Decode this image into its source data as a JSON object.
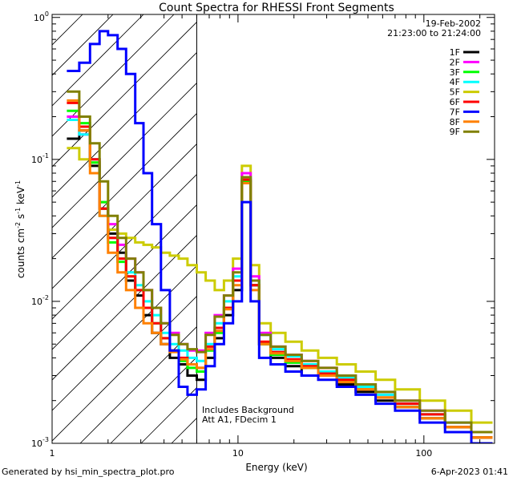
{
  "chart_data": {
    "type": "line",
    "title": "Count Spectra for RHESSI Front Segments",
    "xlabel": "Energy (keV)",
    "ylabel": "counts cm-2 s-1 keV-1",
    "ylabel_parts": {
      "base": "counts cm",
      "exp1": "-2",
      "mid": " s",
      "exp2": "-1",
      "tail": " keV",
      "exp3": "-1"
    },
    "xscale": "log",
    "yscale": "log",
    "xlim": [
      1,
      240
    ],
    "ylim": [
      0.001,
      1.05
    ],
    "x_ticks": [
      {
        "value": 1,
        "label": "1"
      },
      {
        "value": 10,
        "label": "10"
      },
      {
        "value": 100,
        "label": "100"
      }
    ],
    "y_ticks": [
      {
        "value": 1,
        "base": "10",
        "exp": "0"
      },
      {
        "value": 0.1,
        "base": "10",
        "exp": "-1"
      },
      {
        "value": 0.01,
        "base": "10",
        "exp": "-2"
      },
      {
        "value": 0.001,
        "base": "10",
        "exp": "-3"
      }
    ],
    "date": "19-Feb-2002",
    "time_range": "21:23:00 to 21:24:00",
    "annotations": [
      "Includes Background",
      "Att A1, FDecim 1"
    ],
    "shaded_region": {
      "x_min": 1,
      "x_max": 6,
      "style": "diagonal-hatch"
    },
    "legend_position": "top-right",
    "series": [
      {
        "name": "1F",
        "color": "#000000",
        "values": [
          0.14,
          0.16,
          0.09,
          0.045,
          0.03,
          0.022,
          0.014,
          0.011,
          0.008,
          0.006,
          0.005,
          0.004,
          0.0036,
          0.003,
          0.0028,
          0.004,
          0.0055,
          0.008,
          0.012,
          0.07,
          0.013,
          0.005,
          0.004,
          0.0035,
          0.003,
          0.003,
          0.0026,
          0.0023,
          0.002,
          0.0018,
          0.0015,
          0.0013,
          0.0011
        ]
      },
      {
        "name": "2F",
        "color": "#ff00ff",
        "values": [
          0.2,
          0.15,
          0.1,
          0.05,
          0.035,
          0.025,
          0.02,
          0.016,
          0.012,
          0.009,
          0.007,
          0.006,
          0.005,
          0.0045,
          0.0045,
          0.006,
          0.008,
          0.011,
          0.017,
          0.08,
          0.015,
          0.006,
          0.0048,
          0.0042,
          0.0038,
          0.0034,
          0.003,
          0.0026,
          0.0022,
          0.002,
          0.0017,
          0.0014,
          0.0012
        ]
      },
      {
        "name": "3F",
        "color": "#00ff00",
        "values": [
          0.22,
          0.18,
          0.095,
          0.05,
          0.026,
          0.019,
          0.015,
          0.012,
          0.009,
          0.007,
          0.0055,
          0.0045,
          0.0038,
          0.0034,
          0.0032,
          0.0045,
          0.006,
          0.009,
          0.014,
          0.07,
          0.013,
          0.005,
          0.0042,
          0.0037,
          0.0034,
          0.0031,
          0.0028,
          0.0024,
          0.0021,
          0.0019,
          0.0016,
          0.0013,
          0.0011
        ]
      },
      {
        "name": "4F",
        "color": "#00ffff",
        "values": [
          0.19,
          0.15,
          0.1,
          0.04,
          0.028,
          0.02,
          0.016,
          0.013,
          0.01,
          0.008,
          0.006,
          0.005,
          0.0045,
          0.004,
          0.0038,
          0.005,
          0.007,
          0.01,
          0.015,
          0.075,
          0.014,
          0.0058,
          0.0046,
          0.0041,
          0.0036,
          0.0032,
          0.0029,
          0.0025,
          0.0022,
          0.0019,
          0.0016,
          0.0014,
          0.0012
        ]
      },
      {
        "name": "5F",
        "color": "#cccc00",
        "values": [
          0.12,
          0.1,
          0.095,
          0.05,
          0.032,
          0.03,
          0.028,
          0.026,
          0.025,
          0.024,
          0.022,
          0.021,
          0.02,
          0.018,
          0.016,
          0.014,
          0.012,
          0.014,
          0.02,
          0.09,
          0.018,
          0.007,
          0.006,
          0.0052,
          0.0045,
          0.004,
          0.0036,
          0.0032,
          0.0028,
          0.0024,
          0.002,
          0.0017,
          0.0014
        ]
      },
      {
        "name": "6F",
        "color": "#ff0000",
        "values": [
          0.25,
          0.17,
          0.1,
          0.045,
          0.028,
          0.02,
          0.015,
          0.012,
          0.009,
          0.007,
          0.0055,
          0.0045,
          0.004,
          0.0036,
          0.0034,
          0.0048,
          0.0065,
          0.009,
          0.014,
          0.072,
          0.013,
          0.0052,
          0.0044,
          0.0039,
          0.0035,
          0.0031,
          0.0028,
          0.0024,
          0.0021,
          0.0019,
          0.0016,
          0.0013,
          0.0011
        ]
      },
      {
        "name": "7F",
        "color": "#0000ff",
        "values": [
          0.42,
          0.48,
          0.65,
          0.8,
          0.75,
          0.6,
          0.4,
          0.18,
          0.08,
          0.035,
          0.012,
          0.0045,
          0.0025,
          0.0022,
          0.0024,
          0.0035,
          0.005,
          0.007,
          0.01,
          0.05,
          0.01,
          0.004,
          0.0036,
          0.0032,
          0.003,
          0.0028,
          0.0025,
          0.0022,
          0.0019,
          0.0017,
          0.0014,
          0.0012,
          0.001
        ]
      },
      {
        "name": "8F",
        "color": "#ff8000",
        "values": [
          0.26,
          0.16,
          0.08,
          0.04,
          0.022,
          0.016,
          0.012,
          0.009,
          0.007,
          0.006,
          0.005,
          0.0044,
          0.0039,
          0.0036,
          0.0034,
          0.0046,
          0.0062,
          0.0088,
          0.013,
          0.068,
          0.012,
          0.005,
          0.0043,
          0.0038,
          0.0034,
          0.003,
          0.0027,
          0.0024,
          0.0021,
          0.0018,
          0.0015,
          0.0013,
          0.0011
        ]
      },
      {
        "name": "9F",
        "color": "#808000",
        "values": [
          0.3,
          0.2,
          0.13,
          0.07,
          0.04,
          0.028,
          0.02,
          0.016,
          0.012,
          0.009,
          0.007,
          0.0058,
          0.005,
          0.0046,
          0.0044,
          0.0058,
          0.0078,
          0.011,
          0.016,
          0.075,
          0.014,
          0.0058,
          0.0048,
          0.0042,
          0.0038,
          0.0034,
          0.003,
          0.0026,
          0.0023,
          0.002,
          0.0017,
          0.0014,
          0.0012
        ]
      }
    ],
    "energy_bins": [
      1.2,
      1.4,
      1.6,
      1.8,
      2.0,
      2.25,
      2.5,
      2.8,
      3.1,
      3.45,
      3.85,
      4.3,
      4.8,
      5.35,
      6.0,
      6.7,
      7.5,
      8.4,
      9.4,
      10.5,
      11.7,
      13.0,
      15.0,
      18.0,
      22.0,
      27.0,
      34.0,
      43.0,
      55.0,
      70.0,
      95.0,
      130.0,
      180.0
    ]
  },
  "footer": {
    "left": "Generated by hsi_min_spectra_plot.pro",
    "right": "6-Apr-2023 01:41"
  }
}
